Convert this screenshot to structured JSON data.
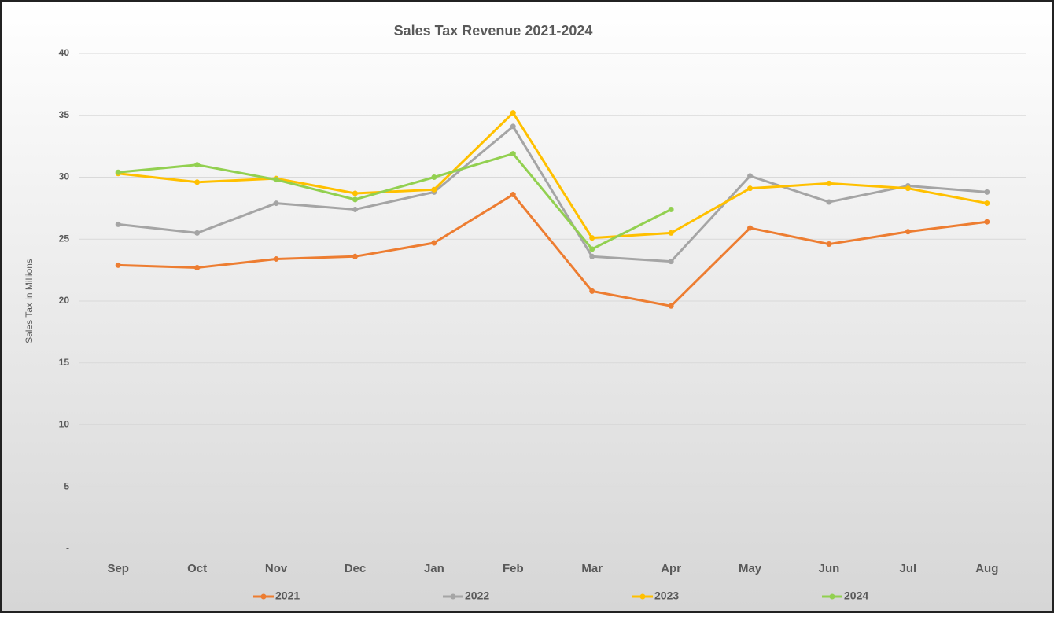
{
  "chart_data": {
    "type": "line",
    "title": "Sales Tax Revenue 2021-2024",
    "y_label": "Sales Tax in Millions",
    "categories": [
      "Sep",
      "Oct",
      "Nov",
      "Dec",
      "Jan",
      "Feb",
      "Mar",
      "Apr",
      "May",
      "Jun",
      "Jul",
      "Aug"
    ],
    "series": [
      {
        "name": "2021",
        "color": "#ed7d31",
        "values": [
          22.9,
          22.7,
          23.4,
          23.6,
          24.7,
          28.6,
          20.8,
          19.6,
          25.9,
          24.6,
          25.6,
          26.4
        ]
      },
      {
        "name": "2022",
        "color": "#a5a5a5",
        "values": [
          26.2,
          25.5,
          27.9,
          27.4,
          28.8,
          34.1,
          23.6,
          23.2,
          30.1,
          28.0,
          29.3,
          28.8
        ]
      },
      {
        "name": "2023",
        "color": "#ffc000",
        "values": [
          30.3,
          29.6,
          29.9,
          28.7,
          29.0,
          35.2,
          25.1,
          25.5,
          29.1,
          29.5,
          29.1,
          27.9
        ]
      },
      {
        "name": "2024",
        "color": "#92d050",
        "values": [
          30.4,
          31.0,
          29.8,
          28.2,
          30.0,
          31.9,
          24.2,
          27.4,
          null,
          null,
          null,
          null
        ]
      }
    ],
    "ylim": [
      0,
      40
    ],
    "yticks": [
      {
        "value": 0,
        "label": "-"
      },
      5,
      10,
      15,
      20,
      25,
      30,
      35,
      40
    ],
    "grid": true,
    "legend": "bottom"
  }
}
